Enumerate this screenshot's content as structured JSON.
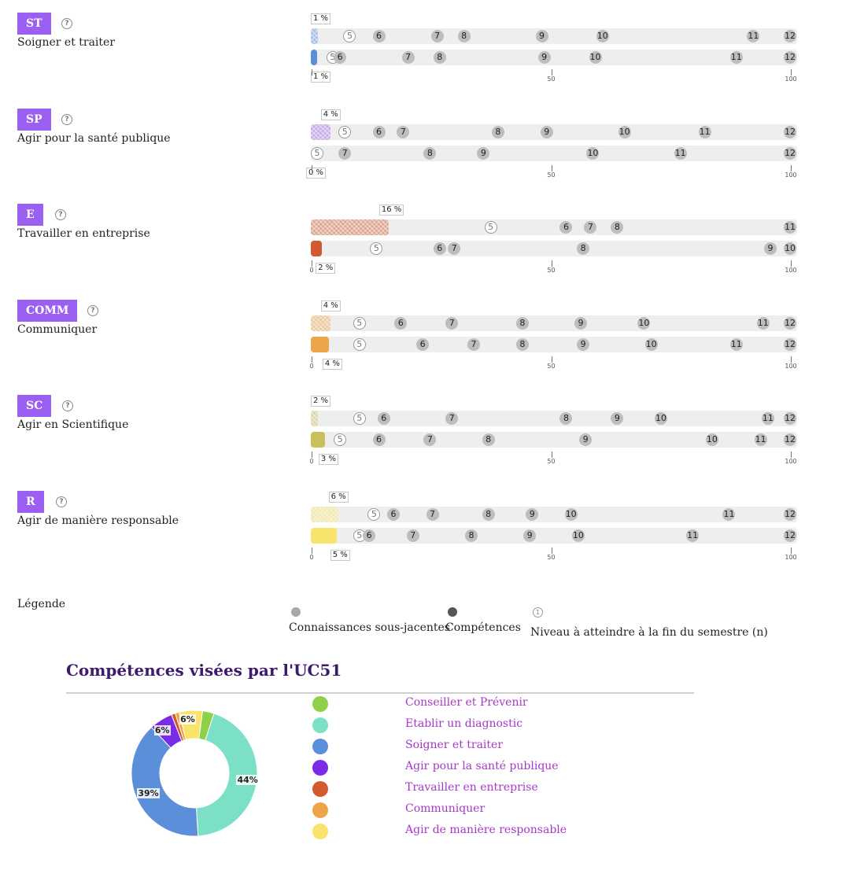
{
  "competences": [
    {
      "code": "ST",
      "label": "Soigner et traiter",
      "color": "#5b8fd9",
      "pct_top": "1 %",
      "pct_bottom": "1 %",
      "fill_top": 1.4,
      "fill_bottom": 1.2,
      "levels_top": [
        {
          "n": "5",
          "v": 8,
          "k": "t"
        },
        {
          "n": "6",
          "v": 14,
          "k": "k"
        },
        {
          "n": "7",
          "v": 26,
          "k": "k"
        },
        {
          "n": "8",
          "v": 31.5,
          "k": "k"
        },
        {
          "n": "9",
          "v": 47.5,
          "k": "k"
        },
        {
          "n": "10",
          "v": 60,
          "k": "k"
        },
        {
          "n": "11",
          "v": 91,
          "k": "k"
        },
        {
          "n": "12",
          "v": 100,
          "k": "k"
        }
      ],
      "levels_bottom": [
        {
          "n": "5",
          "v": 4.5,
          "k": "t"
        },
        {
          "n": "6",
          "v": 6,
          "k": "k"
        },
        {
          "n": "7",
          "v": 20,
          "k": "k"
        },
        {
          "n": "8",
          "v": 26.5,
          "k": "k"
        },
        {
          "n": "9",
          "v": 48,
          "k": "k"
        },
        {
          "n": "10",
          "v": 58.5,
          "k": "k"
        },
        {
          "n": "11",
          "v": 87.5,
          "k": "k"
        },
        {
          "n": "12",
          "v": 100,
          "k": "k"
        }
      ],
      "axis": [
        "",
        "50",
        "100"
      ]
    },
    {
      "code": "SP",
      "label": "Agir pour la santé publique",
      "color": "#a36ae8",
      "pct_top": "4 %",
      "pct_bottom": "0 %",
      "fill_top": 4,
      "fill_bottom": 0,
      "levels_top": [
        {
          "n": "5",
          "v": 7,
          "k": "t"
        },
        {
          "n": "6",
          "v": 14,
          "k": "k"
        },
        {
          "n": "7",
          "v": 19,
          "k": "k"
        },
        {
          "n": "8",
          "v": 38.5,
          "k": "k"
        },
        {
          "n": "9",
          "v": 48.5,
          "k": "k"
        },
        {
          "n": "10",
          "v": 64.5,
          "k": "k"
        },
        {
          "n": "11",
          "v": 81,
          "k": "k"
        },
        {
          "n": "12",
          "v": 100,
          "k": "k"
        }
      ],
      "levels_bottom": [
        {
          "n": "5",
          "v": 1,
          "k": "t"
        },
        {
          "n": "7",
          "v": 7,
          "k": "k"
        },
        {
          "n": "8",
          "v": 24.5,
          "k": "k"
        },
        {
          "n": "9",
          "v": 35.5,
          "k": "k"
        },
        {
          "n": "10",
          "v": 58,
          "k": "k"
        },
        {
          "n": "11",
          "v": 76,
          "k": "k"
        },
        {
          "n": "12",
          "v": 100,
          "k": "k"
        }
      ],
      "axis": [
        "",
        "50",
        "100"
      ]
    },
    {
      "code": "E",
      "label": "Travailler en entreprise",
      "color": "#d35a2e",
      "pct_top": "16 %",
      "pct_bottom": "2 %",
      "fill_top": 16,
      "fill_bottom": 2.3,
      "levels_top": [
        {
          "n": "5",
          "v": 37,
          "k": "t"
        },
        {
          "n": "6",
          "v": 52.5,
          "k": "k"
        },
        {
          "n": "7",
          "v": 57.5,
          "k": "k"
        },
        {
          "n": "8",
          "v": 63,
          "k": "k"
        },
        {
          "n": "11",
          "v": 100,
          "k": "k"
        }
      ],
      "levels_bottom": [
        {
          "n": "5",
          "v": 13.5,
          "k": "t"
        },
        {
          "n": "6",
          "v": 26.5,
          "k": "k"
        },
        {
          "n": "7",
          "v": 29.5,
          "k": "k"
        },
        {
          "n": "8",
          "v": 56,
          "k": "k"
        },
        {
          "n": "9",
          "v": 94.5,
          "k": "k"
        },
        {
          "n": "10",
          "v": 100,
          "k": "k"
        }
      ],
      "axis": [
        "0",
        "50",
        "100"
      ]
    },
    {
      "code": "COMM",
      "label": "Communiquer",
      "color": "#eda54a",
      "pct_top": "4 %",
      "pct_bottom": "4 %",
      "fill_top": 4,
      "fill_bottom": 3.7,
      "levels_top": [
        {
          "n": "5",
          "v": 10,
          "k": "t"
        },
        {
          "n": "6",
          "v": 18.5,
          "k": "k"
        },
        {
          "n": "7",
          "v": 29,
          "k": "k"
        },
        {
          "n": "8",
          "v": 43.5,
          "k": "k"
        },
        {
          "n": "9",
          "v": 55.5,
          "k": "k"
        },
        {
          "n": "10",
          "v": 68.5,
          "k": "k"
        },
        {
          "n": "11",
          "v": 93,
          "k": "k"
        },
        {
          "n": "12",
          "v": 100,
          "k": "k"
        }
      ],
      "levels_bottom": [
        {
          "n": "5",
          "v": 10,
          "k": "t"
        },
        {
          "n": "6",
          "v": 23,
          "k": "k"
        },
        {
          "n": "7",
          "v": 33.5,
          "k": "k"
        },
        {
          "n": "8",
          "v": 43.5,
          "k": "k"
        },
        {
          "n": "9",
          "v": 56,
          "k": "k"
        },
        {
          "n": "10",
          "v": 70,
          "k": "k"
        },
        {
          "n": "11",
          "v": 87.5,
          "k": "k"
        },
        {
          "n": "12",
          "v": 100,
          "k": "k"
        }
      ],
      "axis": [
        "0",
        "50",
        "100"
      ]
    },
    {
      "code": "SC",
      "label": "Agir en Scientifique",
      "color": "#c8c05a",
      "pct_top": "2 %",
      "pct_bottom": "3 %",
      "fill_top": 1.5,
      "fill_bottom": 2.9,
      "levels_top": [
        {
          "n": "5",
          "v": 10,
          "k": "t"
        },
        {
          "n": "6",
          "v": 15,
          "k": "k"
        },
        {
          "n": "7",
          "v": 29,
          "k": "k"
        },
        {
          "n": "8",
          "v": 52.5,
          "k": "k"
        },
        {
          "n": "9",
          "v": 63,
          "k": "k"
        },
        {
          "n": "10",
          "v": 72,
          "k": "k"
        },
        {
          "n": "11",
          "v": 94,
          "k": "k"
        },
        {
          "n": "12",
          "v": 100,
          "k": "k"
        }
      ],
      "levels_bottom": [
        {
          "n": "5",
          "v": 6,
          "k": "t"
        },
        {
          "n": "6",
          "v": 14,
          "k": "k"
        },
        {
          "n": "7",
          "v": 24.5,
          "k": "k"
        },
        {
          "n": "8",
          "v": 36.5,
          "k": "k"
        },
        {
          "n": "9",
          "v": 56.5,
          "k": "k"
        },
        {
          "n": "10",
          "v": 82.5,
          "k": "k"
        },
        {
          "n": "11",
          "v": 92.5,
          "k": "k"
        },
        {
          "n": "12",
          "v": 100,
          "k": "k"
        }
      ],
      "axis": [
        "0",
        "50",
        "100"
      ]
    },
    {
      "code": "R",
      "label": "Agir de manière responsable",
      "color": "#f8e46a",
      "pct_top": "6 %",
      "pct_bottom": "5 %",
      "fill_top": 5.6,
      "fill_bottom": 5.3,
      "levels_top": [
        {
          "n": "5",
          "v": 13,
          "k": "t"
        },
        {
          "n": "6",
          "v": 17,
          "k": "k"
        },
        {
          "n": "7",
          "v": 25,
          "k": "k"
        },
        {
          "n": "8",
          "v": 36.5,
          "k": "k"
        },
        {
          "n": "9",
          "v": 45.5,
          "k": "k"
        },
        {
          "n": "10",
          "v": 53.5,
          "k": "k"
        },
        {
          "n": "11",
          "v": 86,
          "k": "k"
        },
        {
          "n": "12",
          "v": 100,
          "k": "k"
        }
      ],
      "levels_bottom": [
        {
          "n": "5",
          "v": 10,
          "k": "t"
        },
        {
          "n": "6",
          "v": 12,
          "k": "k"
        },
        {
          "n": "7",
          "v": 21,
          "k": "k"
        },
        {
          "n": "8",
          "v": 33,
          "k": "k"
        },
        {
          "n": "9",
          "v": 45,
          "k": "k"
        },
        {
          "n": "10",
          "v": 55,
          "k": "k"
        },
        {
          "n": "11",
          "v": 78.5,
          "k": "k"
        },
        {
          "n": "12",
          "v": 100,
          "k": "k"
        }
      ],
      "axis": [
        "0",
        "50",
        "100"
      ]
    }
  ],
  "legend": {
    "title": "Légende",
    "knowledge": "Connaissances sous-jacentes",
    "competence": "Compétences",
    "target": "Niveau à atteindre à la fin du semestre (n)",
    "target_symbol": "1"
  },
  "uc": {
    "title": "Compétences visées par l'UC51"
  },
  "chart_data": {
    "type": "pie",
    "categories": [
      "Conseiller et Prévenir",
      "Etablir un diagnostic",
      "Soigner et traiter",
      "Agir pour la santé publique",
      "Travailler en entreprise",
      "Communiquer",
      "Agir de manière responsable"
    ],
    "values": [
      3,
      44,
      39,
      6,
      1,
      1,
      6
    ],
    "colors": [
      "#8ed04a",
      "#7ce0c6",
      "#5b8fd9",
      "#7a2be8",
      "#d35a2e",
      "#eda54a",
      "#f8e46a"
    ],
    "data_labels": [
      "",
      "44%",
      "39%",
      "6%",
      "",
      "",
      "6%"
    ],
    "hole": 0.55
  }
}
